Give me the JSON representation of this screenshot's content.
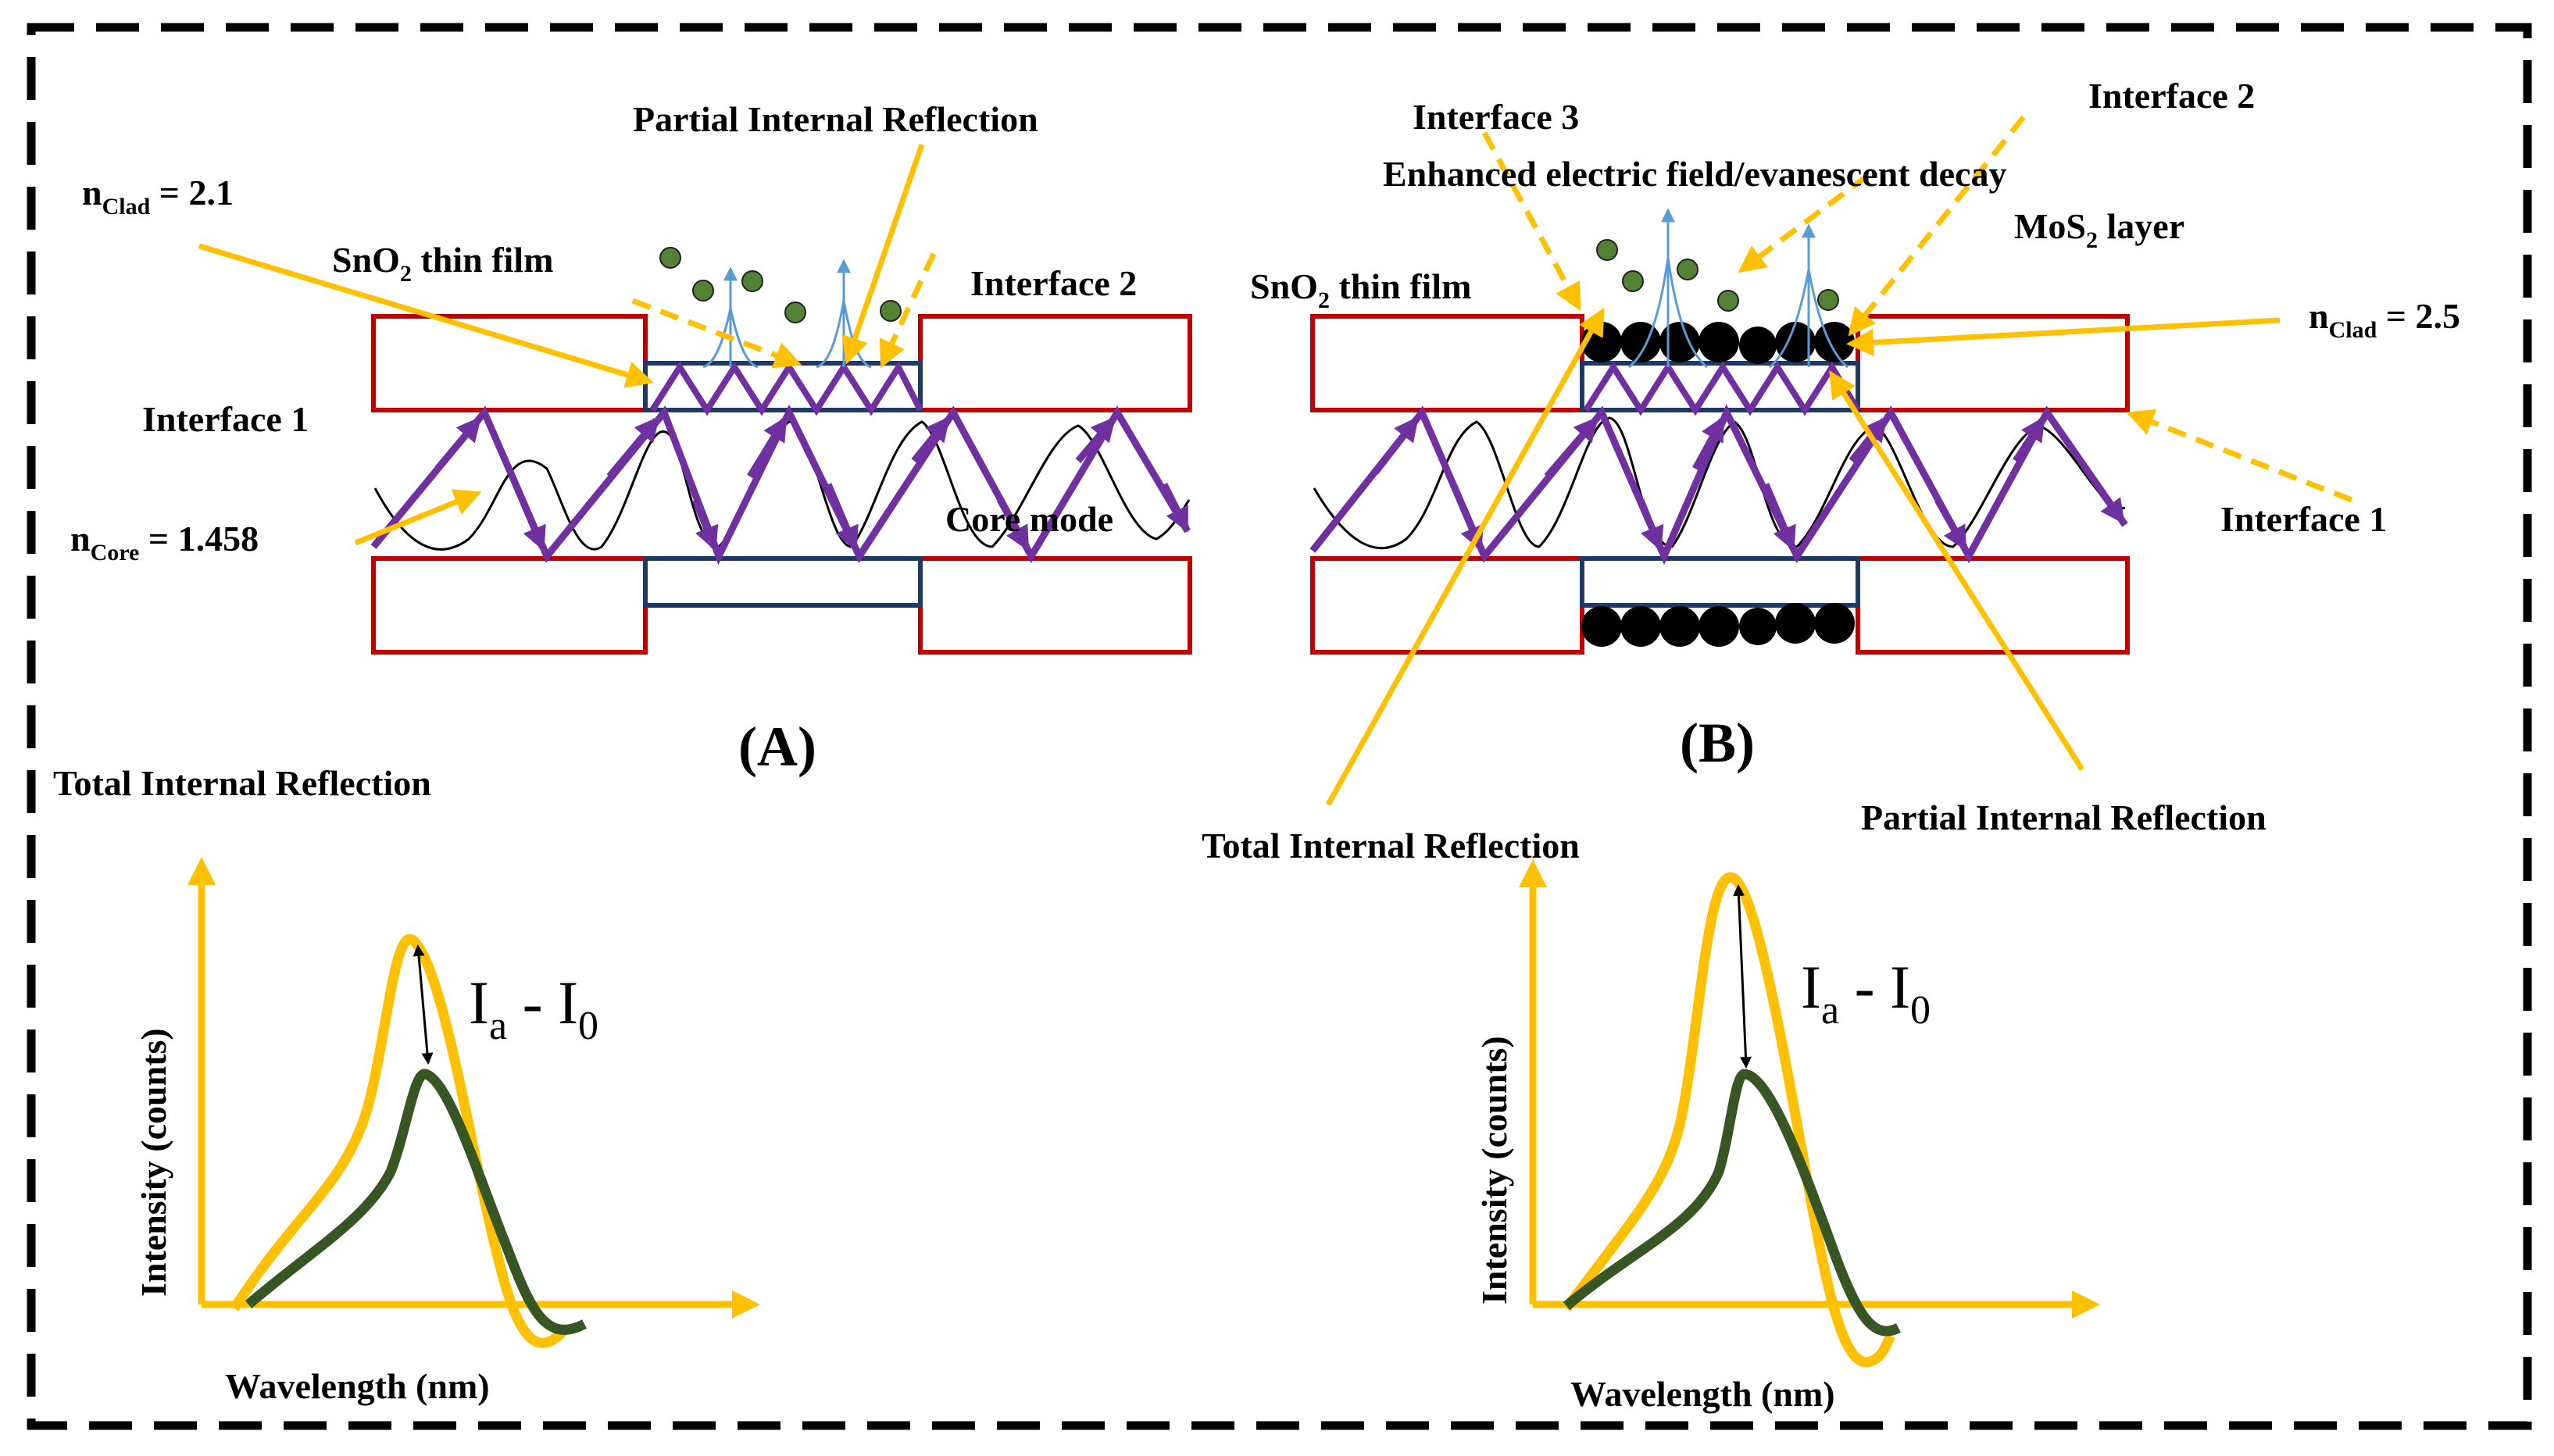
{
  "colors": {
    "border": "#000000",
    "cladding": "#C00000",
    "film": "#1F3864",
    "ray": "#7030A0",
    "arrow": "#FFC000",
    "gas": "#548235",
    "evanescent": "#5B9BD5",
    "curve_after": "#375623"
  },
  "panel_a": {
    "title": "(A)",
    "partial_reflection": "Partial Internal Reflection",
    "n_clad": {
      "base": "n",
      "sub": "Clad",
      "value": " = 2.1"
    },
    "sno2": {
      "prefix": "SnO",
      "sub": "2",
      "suffix": " thin film"
    },
    "interface2": "Interface 2",
    "interface1": "Interface 1",
    "n_core": {
      "base": "n",
      "sub": "Core",
      "value": " = 1.458"
    },
    "core_mode": "Core mode",
    "total_reflection": "Total Internal Reflection",
    "chart": {
      "ylabel": "Intensity (counts)",
      "xlabel": "Wavelength (nm)",
      "delta": {
        "a": "I",
        "a_sub": "a",
        "mid": " - ",
        "b": "I",
        "b_sub": "0"
      }
    }
  },
  "panel_b": {
    "title": "(B)",
    "interface3": "Interface 3",
    "interface2": "Interface 2",
    "enhanced": "Enhanced electric field/evanescent decay",
    "mos2": {
      "prefix": "MoS",
      "sub": "2",
      "suffix": " layer"
    },
    "sno2": {
      "prefix": "SnO",
      "sub": "2",
      "suffix": " thin film"
    },
    "n_clad": {
      "base": "n",
      "sub": "Clad",
      "value": " = 2.5"
    },
    "interface1": "Interface 1",
    "total_reflection": "Total Internal Reflection",
    "partial_reflection": "Partial Internal Reflection",
    "chart": {
      "ylabel": "Intensity (counts)",
      "xlabel": "Wavelength (nm)",
      "delta": {
        "a": "I",
        "a_sub": "a",
        "mid": " - ",
        "b": "I",
        "b_sub": "0"
      }
    }
  }
}
